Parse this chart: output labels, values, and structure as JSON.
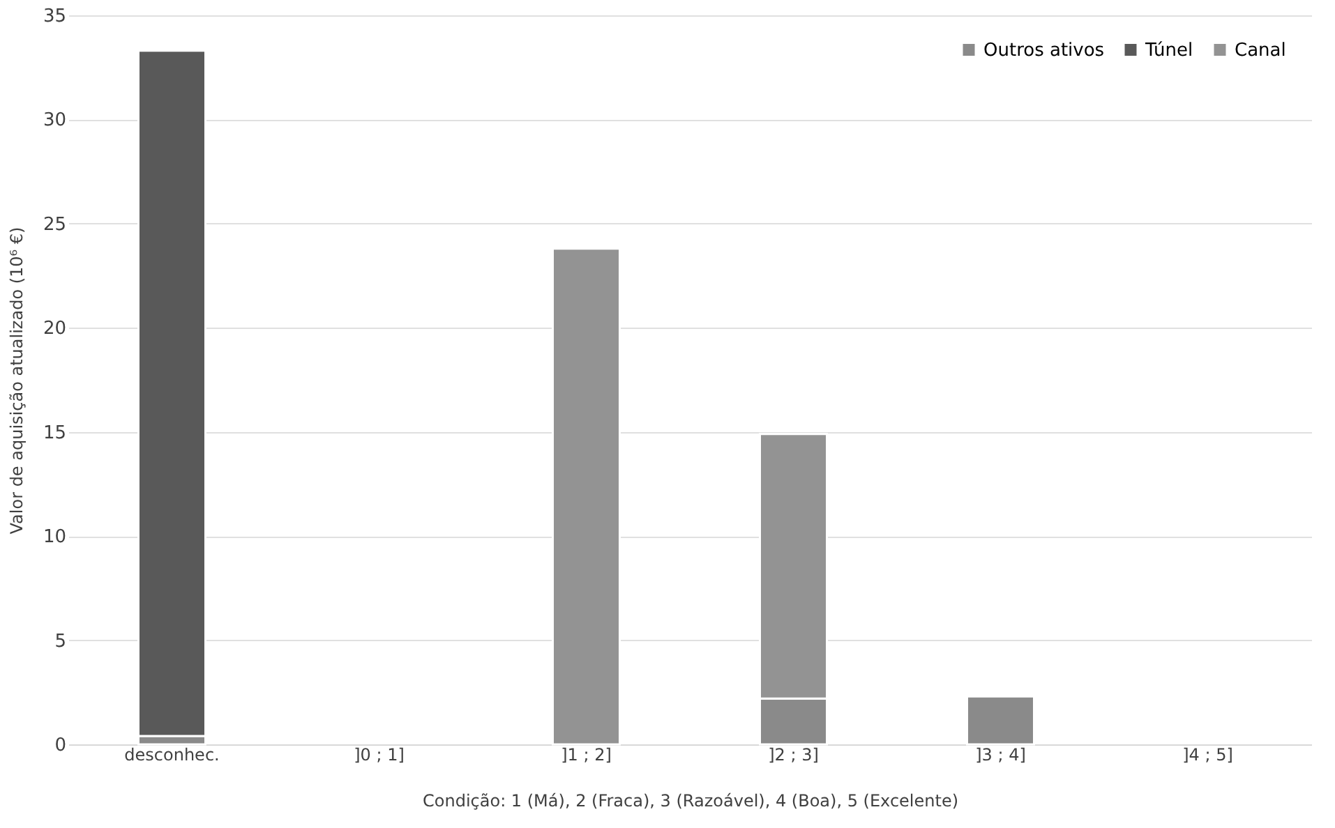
{
  "chart_data": {
    "type": "bar",
    "stacked": true,
    "categories": [
      "desconhec.",
      "]0 ; 1]",
      "]1 ; 2]",
      "]2 ; 3]",
      "]3 ; 4]",
      "]4 ; 5]"
    ],
    "series": [
      {
        "name": "Outros ativos",
        "color": "#8a8a8a",
        "values": [
          0.4,
          null,
          null,
          2.2,
          2.3,
          null
        ]
      },
      {
        "name": "Túnel",
        "color": "#595959",
        "values": [
          32.9,
          null,
          null,
          null,
          null,
          null
        ]
      },
      {
        "name": "Canal",
        "color": "#939393",
        "values": [
          null,
          null,
          23.8,
          12.7,
          null,
          null
        ]
      }
    ],
    "xlabel": "Condição: 1 (Má), 2 (Fraca), 3 (Razoável), 4 (Boa), 5 (Excelente)",
    "ylabel": "Valor de aquisição atualizado (10⁶ €)",
    "ylim": [
      0,
      35
    ],
    "yticks": [
      0,
      5,
      10,
      15,
      20,
      25,
      30,
      35
    ],
    "grid": "y",
    "legend": "top right"
  }
}
